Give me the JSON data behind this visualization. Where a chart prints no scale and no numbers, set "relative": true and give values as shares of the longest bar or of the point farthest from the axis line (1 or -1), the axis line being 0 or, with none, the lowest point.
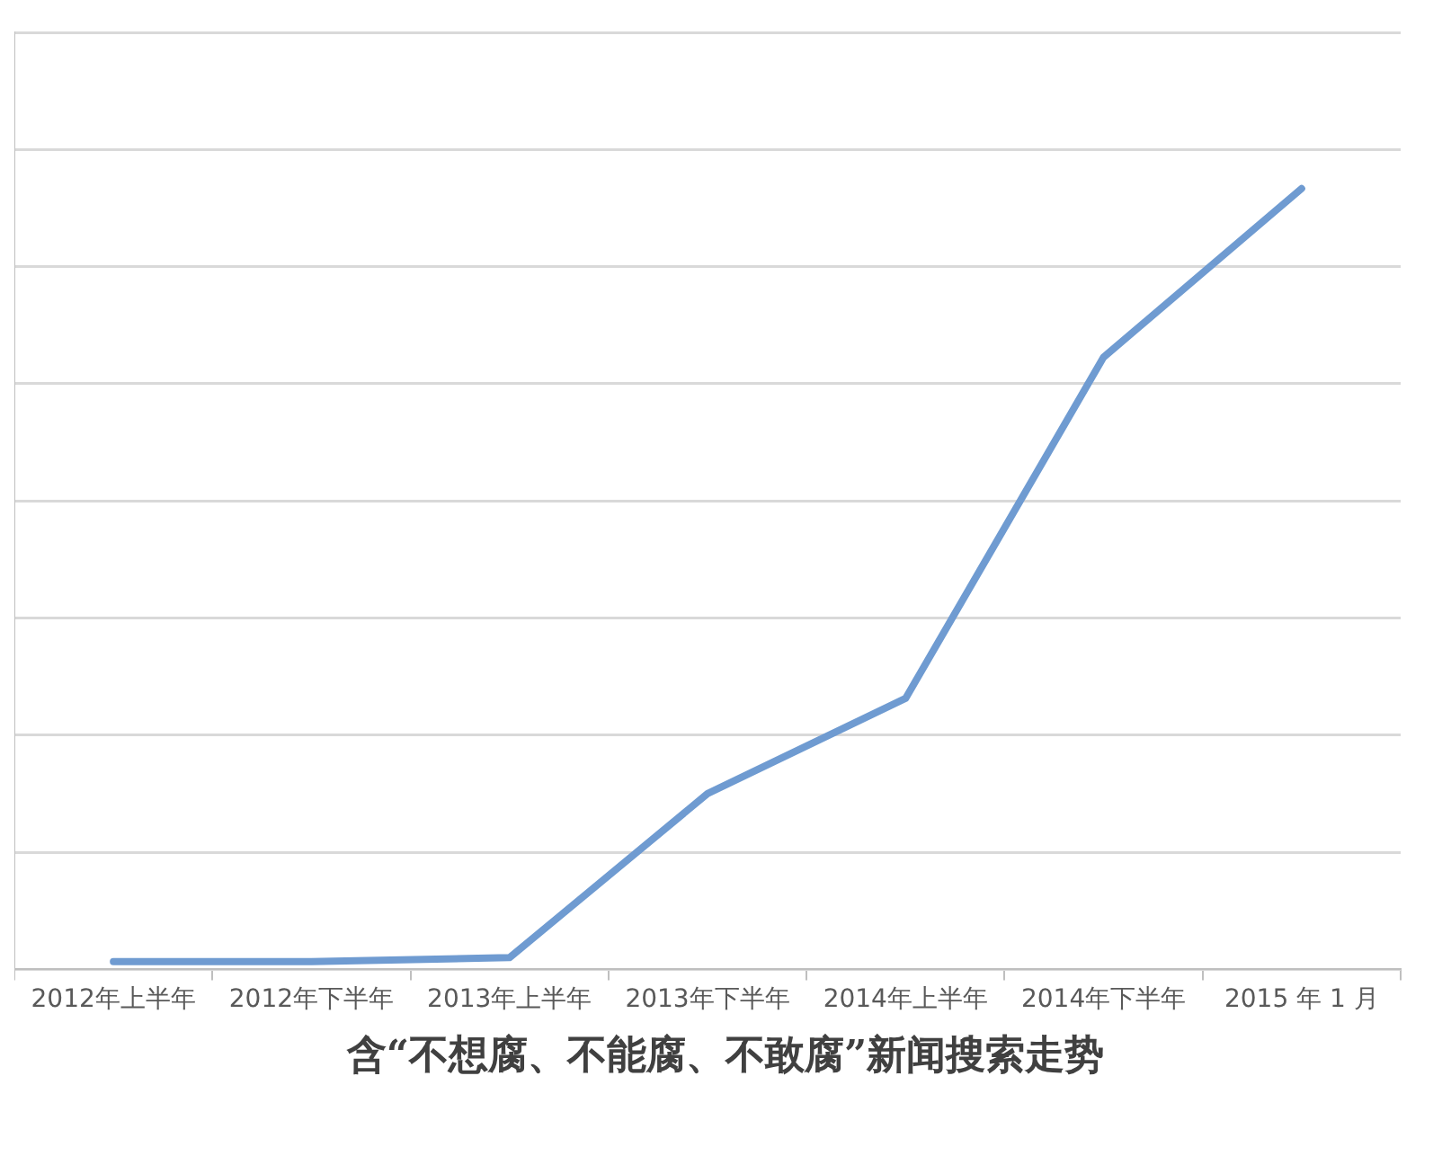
{
  "chart_data": {
    "type": "line",
    "title": "含“不想腐、不能腐、不敢腐”新闻搜索走势",
    "categories": [
      "2012年上半年",
      "2012年下半年",
      "2013年上半年",
      "2013年下半年",
      "2014年上半年",
      "2014年下半年",
      "2015 年 1 月"
    ],
    "series": [
      {
        "color": "#6f9bd1",
        "values": [
          0.01,
          0.01,
          0.015,
          0.225,
          0.347,
          0.784,
          1
        ]
      }
    ],
    "relative": true,
    "grid": "y",
    "legend": false,
    "marker": "none",
    "line_style": "solid"
  }
}
